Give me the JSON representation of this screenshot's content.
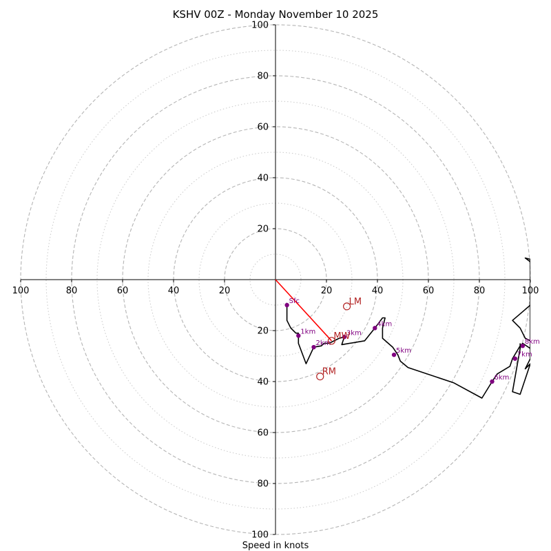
{
  "chart_data": {
    "type": "hodograph",
    "title": "KSHV 00Z - Monday November 10 2025",
    "xlabel": "Speed in knots",
    "axis_max": 100,
    "major_rings": [
      20,
      40,
      60,
      80,
      100
    ],
    "minor_rings": [
      10,
      30,
      50,
      70,
      90
    ],
    "tick_values": [
      20,
      40,
      60,
      80,
      100
    ],
    "x_tick_labels": [
      "100",
      "80",
      "60",
      "40",
      "20",
      "20",
      "40",
      "60",
      "80",
      "100"
    ],
    "y_tick_labels": [
      "100",
      "80",
      "60",
      "40",
      "20",
      "20",
      "40",
      "60",
      "80",
      "100"
    ],
    "hodograph_line": {
      "color": "#000000",
      "points": [
        [
          4.5,
          -10
        ],
        [
          4.5,
          -13
        ],
        [
          4.5,
          -16
        ],
        [
          6,
          -19
        ],
        [
          8,
          -21
        ],
        [
          9,
          -21
        ],
        [
          9,
          -25
        ],
        [
          12,
          -33
        ],
        [
          15,
          -26.5
        ],
        [
          18,
          -26
        ],
        [
          19,
          -25
        ],
        [
          21,
          -25
        ],
        [
          25,
          -23
        ],
        [
          27,
          -22.5
        ],
        [
          26,
          -25.5
        ],
        [
          35,
          -24
        ],
        [
          39,
          -19
        ],
        [
          42,
          -15
        ],
        [
          43,
          -15
        ],
        [
          42,
          -19
        ],
        [
          42,
          -23
        ],
        [
          46,
          -26.5
        ],
        [
          48,
          -29.5
        ],
        [
          49,
          -32
        ],
        [
          52,
          -34.5
        ],
        [
          70,
          -40.5
        ],
        [
          81,
          -46.5
        ],
        [
          85,
          -40
        ],
        [
          87,
          -37
        ],
        [
          92,
          -34
        ],
        [
          93,
          -31
        ],
        [
          96,
          -26
        ],
        [
          97,
          -25
        ],
        [
          100,
          -27
        ],
        [
          100,
          -24
        ],
        [
          98,
          -23
        ],
        [
          96,
          -19
        ],
        [
          93,
          -16
        ],
        [
          100,
          -10
        ],
        [
          100,
          7
        ],
        [
          98,
          8.5
        ],
        [
          100,
          8
        ],
        [
          100,
          -31
        ],
        [
          98,
          -35
        ],
        [
          100,
          -33
        ],
        [
          96,
          -45
        ],
        [
          93,
          -44
        ],
        [
          96,
          -27
        ],
        [
          96,
          -25
        ]
      ]
    },
    "height_markers": [
      {
        "label": "Sfc",
        "u": 4.5,
        "v": -10
      },
      {
        "label": "1km",
        "u": 9,
        "v": -22
      },
      {
        "label": "2km",
        "u": 15,
        "v": -26.5
      },
      {
        "label": "3km",
        "u": 27,
        "v": -22.5
      },
      {
        "label": "4km",
        "u": 39,
        "v": -19
      },
      {
        "label": "5km",
        "u": 46.5,
        "v": -29.5
      },
      {
        "label": "6km",
        "u": 85,
        "v": -40
      },
      {
        "label": "7km",
        "u": 94,
        "v": -31
      },
      {
        "label": "8km",
        "u": 97,
        "v": -26
      }
    ],
    "marker_color": "#800080",
    "storm_motions": [
      {
        "label": "LM",
        "u": 28,
        "v": -10.5
      },
      {
        "label": "MW",
        "u": 22,
        "v": -24
      },
      {
        "label": "RM",
        "u": 17.5,
        "v": -38
      }
    ],
    "motion_color": "#b22222",
    "shear_vector": {
      "from": [
        0,
        0
      ],
      "to": [
        22,
        -24
      ],
      "color": "#ff0000"
    },
    "grid": true
  }
}
